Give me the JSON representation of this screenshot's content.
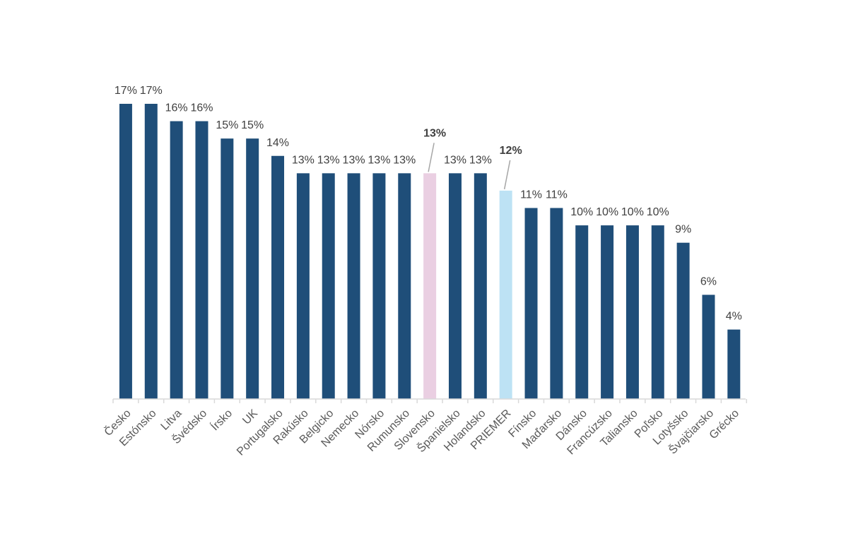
{
  "chart_data": {
    "type": "bar",
    "title": "",
    "xlabel": "",
    "ylabel": "",
    "ylim": [
      0,
      17
    ],
    "grid": false,
    "legend": "none",
    "value_format": "percent",
    "categories": [
      "Česko",
      "Estónsko",
      "Litva",
      "Švédsko",
      "Írsko",
      "UK",
      "Portugalsko",
      "Rakúsko",
      "Belgicko",
      "Nemecko",
      "Nórsko",
      "Rumunsko",
      "Slovensko",
      "Španielsko",
      "Holandsko",
      "PRIEMER",
      "Fínsko",
      "Maďarsko",
      "Dánsko",
      "Francúzsko",
      "Taliansko",
      "Poľsko",
      "Lotyšsko",
      "Švajčiarsko",
      "Grécko"
    ],
    "values": [
      17,
      17,
      16,
      16,
      15,
      15,
      14,
      13,
      13,
      13,
      13,
      13,
      13,
      13,
      13,
      12,
      11,
      11,
      10,
      10,
      10,
      10,
      9,
      6,
      4
    ],
    "labels": [
      "17%",
      "17%",
      "16%",
      "16%",
      "15%",
      "15%",
      "14%",
      "13%",
      "13%",
      "13%",
      "13%",
      "13%",
      "13%",
      "13%",
      "13%",
      "12%",
      "11%",
      "11%",
      "10%",
      "10%",
      "10%",
      "10%",
      "9%",
      "6%",
      "4%"
    ],
    "highlights": {
      "Slovensko": "#eacfe2",
      "PRIEMER": "#bde2f4"
    },
    "emphasized_labels": [
      "Slovensko",
      "PRIEMER"
    ]
  },
  "colors": {
    "bar": "#1f4e79",
    "axis": "#d9d9d9",
    "leader": "#a6a6a6"
  }
}
